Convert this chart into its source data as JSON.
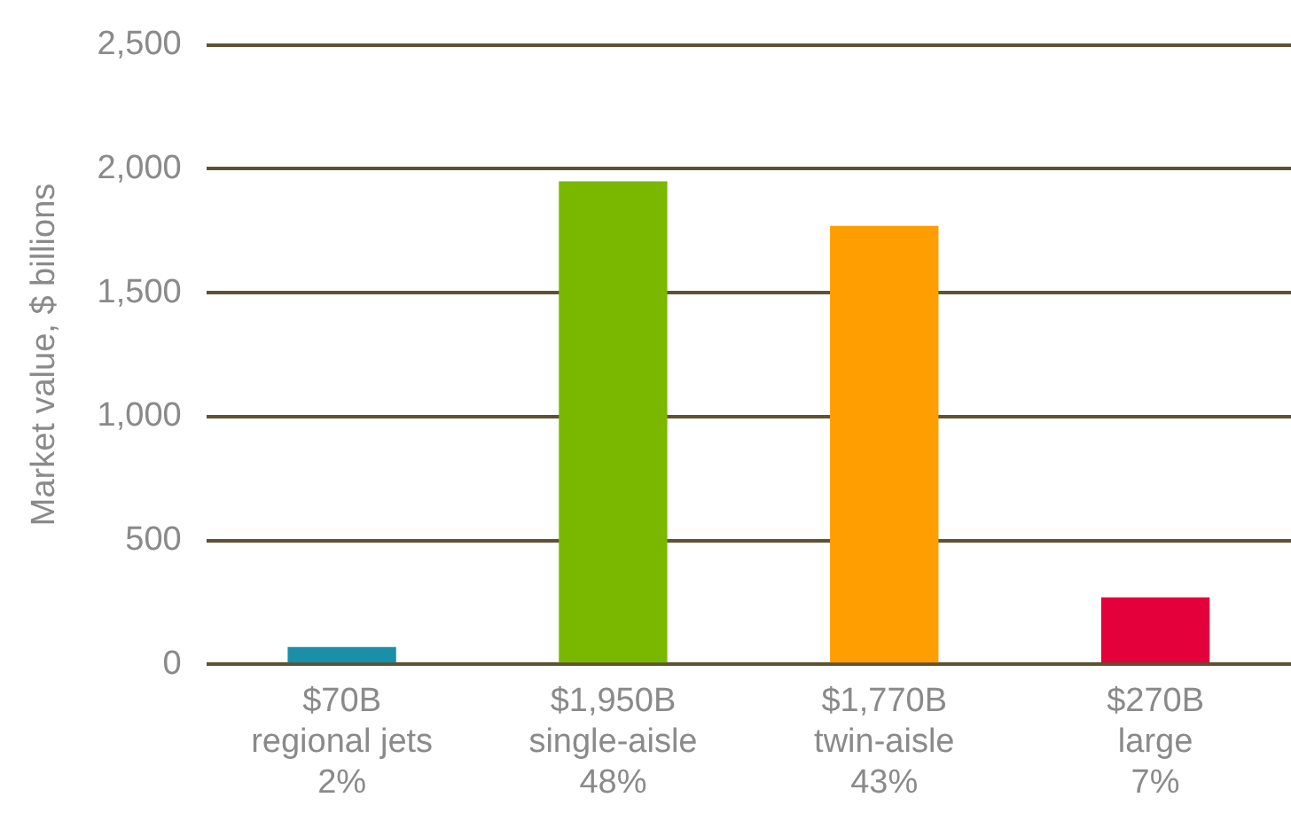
{
  "chart_data": {
    "type": "bar",
    "ylabel": "Market value, $ billions",
    "categories": [
      "$70B\nregional jets\n2%",
      "$1,950B\nsingle-aisle\n48%",
      "$1,770B\ntwin-aisle\n43%",
      "$270B\nlarge\n7%"
    ],
    "values": [
      70,
      1950,
      1770,
      270
    ],
    "colors": [
      "#1a8fa8",
      "#7ab800",
      "#ff9e00",
      "#e4003b"
    ],
    "ylim": [
      0,
      2500
    ],
    "yticks": [
      0,
      500,
      {
        "value": 1000,
        "label": "1,000"
      },
      {
        "value": 1500,
        "label": "1,500"
      },
      {
        "value": 2000,
        "label": "2,000"
      },
      {
        "value": 2500,
        "label": "2,500"
      }
    ],
    "grid": "y",
    "legend": false
  }
}
